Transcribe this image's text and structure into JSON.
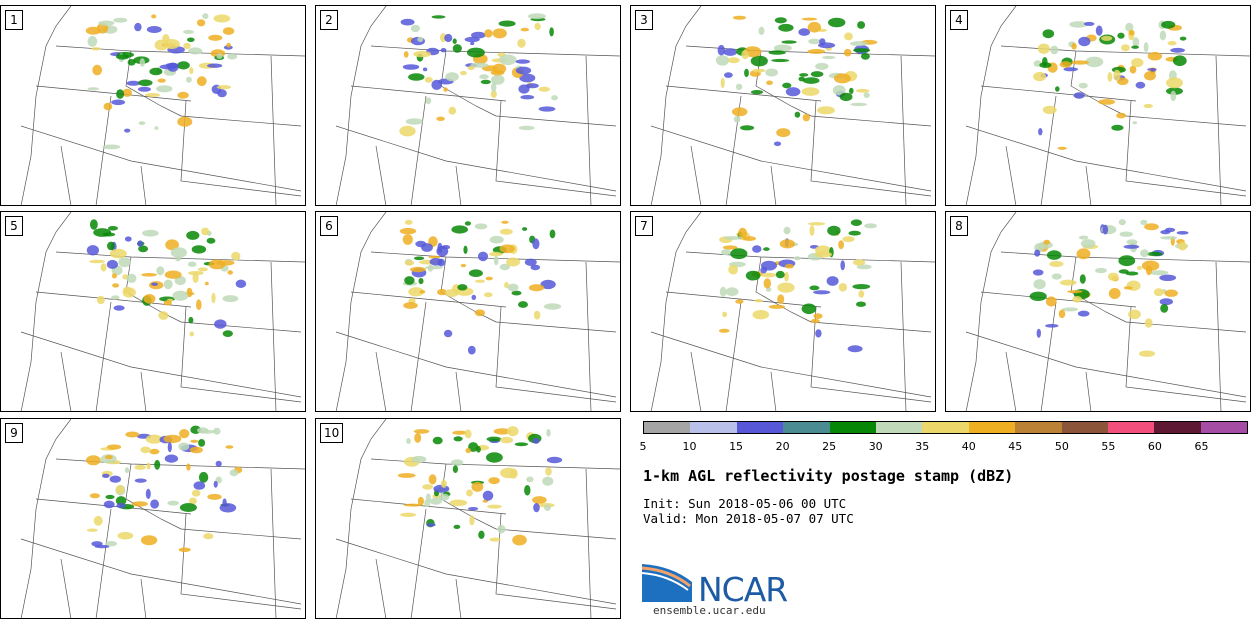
{
  "panels": [
    "1",
    "2",
    "3",
    "4",
    "5",
    "6",
    "7",
    "8",
    "9",
    "10"
  ],
  "colorbar": {
    "ticks": [
      "5",
      "10",
      "15",
      "20",
      "25",
      "30",
      "35",
      "40",
      "45",
      "50",
      "55",
      "60",
      "65"
    ],
    "colors": [
      "#a5a5a5",
      "#b9c1ea",
      "#5658d8",
      "#4a8c91",
      "#078706",
      "#c0d9b8",
      "#ecd86a",
      "#eeaf22",
      "#bb8236",
      "#8c5439",
      "#f24f7d",
      "#5e1834",
      "#a54ca5"
    ]
  },
  "title": "1-km AGL reflectivity postage stamp (dBZ)",
  "init": "Init: Sun 2018-05-06 00 UTC",
  "valid": "Valid: Mon 2018-05-07 07 UTC",
  "logo": {
    "text": "NCAR",
    "url": "ensemble.ucar.edu",
    "accent": "#1d5ca5"
  }
}
